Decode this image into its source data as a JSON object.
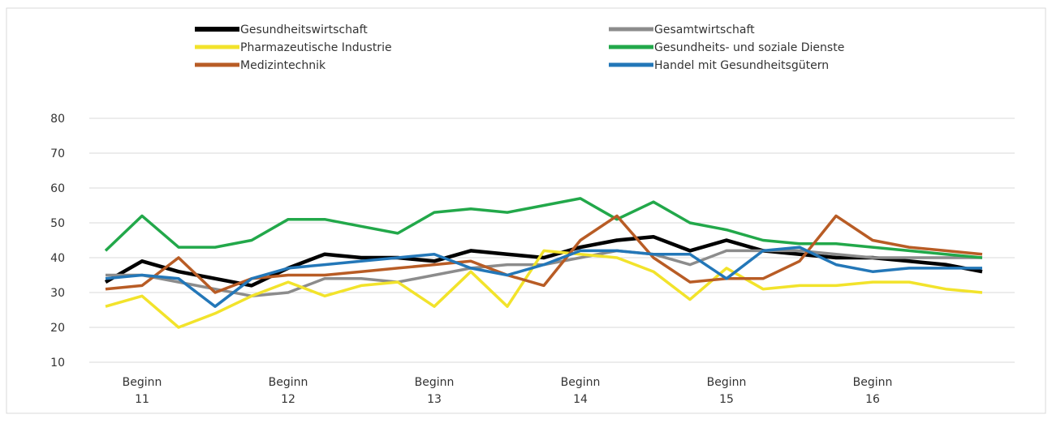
{
  "chart_data": {
    "type": "line",
    "categories": [
      null,
      "Beginn 11",
      null,
      null,
      null,
      "Beginn 12",
      null,
      null,
      null,
      "Beginn 13",
      null,
      null,
      null,
      "Beginn 14",
      null,
      null,
      null,
      "Beginn 15",
      null,
      null,
      null,
      "Beginn 16",
      null,
      null,
      null
    ],
    "series": [
      {
        "name": "Gesundheitswirtschaft",
        "color": "#000000",
        "values": [
          33,
          39,
          36,
          34,
          32,
          37,
          41,
          40,
          40,
          39,
          42,
          41,
          40,
          43,
          45,
          46,
          42,
          45,
          42,
          41,
          40,
          40,
          39,
          38,
          36
        ]
      },
      {
        "name": "Gesamtwirtschaft",
        "color": "#8c8c8c",
        "values": [
          35,
          35,
          33,
          31,
          29,
          30,
          34,
          34,
          33,
          35,
          37,
          38,
          38,
          40,
          42,
          41,
          38,
          42,
          42,
          42,
          41,
          40,
          40,
          40,
          40
        ]
      },
      {
        "name": "Pharmazeutische Industrie",
        "color": "#f2e32b",
        "values": [
          26,
          29,
          20,
          24,
          29,
          33,
          29,
          32,
          33,
          26,
          36,
          26,
          42,
          41,
          40,
          36,
          28,
          37,
          31,
          32,
          32,
          33,
          33,
          31,
          30
        ]
      },
      {
        "name": "Gesundheits- und soziale Dienste",
        "color": "#22a84a",
        "values": [
          42,
          52,
          43,
          43,
          45,
          51,
          51,
          49,
          47,
          53,
          54,
          53,
          55,
          57,
          51,
          56,
          50,
          48,
          45,
          44,
          44,
          43,
          42,
          41,
          40
        ]
      },
      {
        "name": "Medizintechnik",
        "color": "#b85c25",
        "values": [
          31,
          32,
          40,
          30,
          34,
          35,
          35,
          36,
          37,
          38,
          39,
          35,
          32,
          45,
          52,
          40,
          33,
          34,
          34,
          39,
          52,
          45,
          43,
          42,
          41
        ]
      },
      {
        "name": "Handel mit Gesundheitsgütern",
        "color": "#2377b8",
        "values": [
          34,
          35,
          34,
          26,
          34,
          37,
          38,
          39,
          40,
          41,
          37,
          35,
          38,
          42,
          42,
          41,
          41,
          34,
          42,
          43,
          38,
          36,
          37,
          37,
          37
        ]
      }
    ],
    "ylim": [
      10,
      80
    ],
    "yticks": [
      10,
      20,
      30,
      40,
      50,
      60,
      70,
      80
    ],
    "grid": true
  }
}
